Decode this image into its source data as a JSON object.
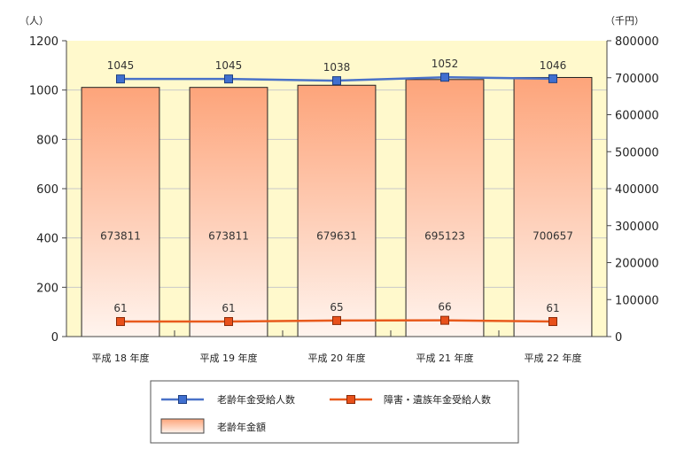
{
  "chart_data": {
    "type": "bar",
    "categories": [
      "平成 18 年度",
      "平成 19 年度",
      "平成 20 年度",
      "平成 21 年度",
      "平成 22 年度"
    ],
    "y_left": {
      "unit": "（人）",
      "range": [
        0,
        1200
      ],
      "ticks": [
        "0",
        "200",
        "400",
        "600",
        "800",
        "1000",
        "1200"
      ]
    },
    "y_right": {
      "unit": "（千円）",
      "range": [
        0,
        800000
      ],
      "ticks": [
        "0",
        "100000",
        "200000",
        "300000",
        "400000",
        "500000",
        "600000",
        "700000",
        "800000"
      ]
    },
    "series": [
      {
        "name": "老齢年金額",
        "kind": "bar",
        "axis": "right",
        "values": [
          673811,
          673811,
          679631,
          695123,
          700657
        ]
      },
      {
        "name": "老齢年金受給人数",
        "kind": "line",
        "axis": "left",
        "values": [
          1045,
          1045,
          1038,
          1052,
          1046
        ]
      },
      {
        "name": "障害・遺族年金受給人数",
        "kind": "line",
        "axis": "left",
        "values": [
          61,
          61,
          65,
          66,
          61
        ]
      }
    ],
    "grid": true,
    "legend_position": "bottom",
    "colors": {
      "plot_background": "#fff9cc",
      "bar_top": "#fda47a",
      "bar_bottom": "#fff4ee",
      "line_elderly": "#4a72c8",
      "marker_elderly": "#3f6fd0",
      "line_disability": "#e85a1c",
      "marker_disability": "#e8501a"
    }
  }
}
